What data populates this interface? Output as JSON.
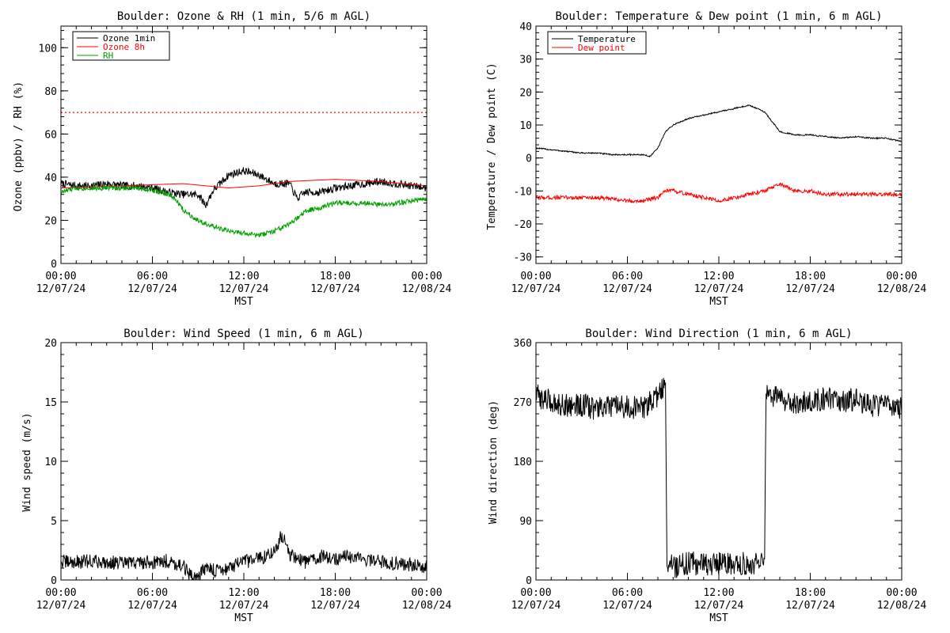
{
  "chart_data": [
    {
      "type": "line",
      "title": "Boulder: Ozone & RH (1 min, 5/6 m AGL)",
      "xlabel": "MST",
      "ylabel": "Ozone (ppbv) / RH (%)",
      "xlim": [
        "12/07/24 00:00",
        "12/08/24 00:00"
      ],
      "ylim": [
        0,
        110
      ],
      "yticks": [
        0,
        20,
        40,
        60,
        80,
        100
      ],
      "xticks": [
        {
          "time": "00:00",
          "date": "12/07/24"
        },
        {
          "time": "06:00",
          "date": "12/07/24"
        },
        {
          "time": "12:00",
          "date": "12/07/24"
        },
        {
          "time": "18:00",
          "date": "12/07/24"
        },
        {
          "time": "00:00",
          "date": "12/08/24"
        }
      ],
      "legend_position": "top-left",
      "reference_lines": [
        {
          "y": 70,
          "color": "#ff0000",
          "style": "dotted"
        }
      ],
      "series": [
        {
          "name": "Ozone 1min",
          "color": "#000000",
          "noise": 1.8,
          "x": [
            0,
            1,
            2,
            3,
            4,
            5,
            6,
            7,
            8,
            9,
            9.5,
            10,
            11,
            12,
            13,
            14,
            15,
            15.5,
            16,
            17,
            18,
            19,
            20,
            21,
            22,
            23,
            24
          ],
          "y": [
            37,
            36,
            36,
            37,
            36,
            36,
            35,
            33,
            32,
            32,
            27,
            34,
            41,
            43,
            41,
            37,
            37,
            30,
            33,
            33,
            35,
            36,
            37,
            38,
            37,
            36,
            35
          ]
        },
        {
          "name": "Ozone 8h",
          "color": "#ff0000",
          "noise": 0,
          "x": [
            0,
            4,
            8,
            11,
            13,
            15,
            18,
            21,
            24
          ],
          "y": [
            35,
            36,
            37,
            35,
            36,
            38,
            39,
            38,
            36
          ]
        },
        {
          "name": "RH",
          "color": "#00a000",
          "noise": 1.2,
          "x": [
            0,
            1,
            2,
            3,
            4,
            5,
            6,
            7,
            7.5,
            8,
            9,
            10,
            11,
            12,
            13,
            14,
            15,
            16,
            17,
            18,
            19,
            20,
            21,
            22,
            23,
            24
          ],
          "y": [
            33,
            35,
            35,
            35,
            35,
            35,
            34,
            32,
            30,
            25,
            20,
            17,
            15,
            14,
            13,
            15,
            18,
            24,
            26,
            28,
            28,
            28,
            27,
            28,
            29,
            30
          ]
        }
      ]
    },
    {
      "type": "line",
      "title": "Boulder: Temperature & Dew point (1 min, 6 m AGL)",
      "xlabel": "MST",
      "ylabel": "Temperature / Dew point (C)",
      "xlim": [
        "12/07/24 00:00",
        "12/08/24 00:00"
      ],
      "ylim": [
        -32,
        40
      ],
      "yticks": [
        -30,
        -20,
        -10,
        0,
        10,
        20,
        30,
        40
      ],
      "xticks": [
        {
          "time": "00:00",
          "date": "12/07/24"
        },
        {
          "time": "06:00",
          "date": "12/07/24"
        },
        {
          "time": "12:00",
          "date": "12/07/24"
        },
        {
          "time": "18:00",
          "date": "12/07/24"
        },
        {
          "time": "00:00",
          "date": "12/08/24"
        }
      ],
      "legend_position": "top-left",
      "series": [
        {
          "name": "Temperature",
          "color": "#000000",
          "noise": 0.2,
          "x": [
            0,
            1,
            2,
            3,
            4,
            5,
            6,
            7,
            7.5,
            8,
            8.5,
            9,
            10,
            11,
            12,
            13,
            14,
            15,
            16,
            17,
            18,
            19,
            20,
            21,
            22,
            23,
            24
          ],
          "y": [
            3,
            2.5,
            2,
            1.5,
            1.5,
            1,
            1,
            1,
            0.5,
            3,
            8,
            10,
            12,
            13,
            14,
            15,
            16,
            14,
            8,
            7,
            7,
            6.5,
            6,
            6.5,
            6,
            6,
            5
          ]
        },
        {
          "name": "Dew point",
          "color": "#ff0000",
          "noise": 0.6,
          "x": [
            0,
            1,
            2,
            3,
            4,
            5,
            6,
            7,
            8,
            8.5,
            9,
            10,
            11,
            12,
            13,
            14,
            15,
            15.5,
            16,
            17,
            18,
            19,
            20,
            21,
            22,
            23,
            24
          ],
          "y": [
            -12,
            -12,
            -12,
            -12,
            -12,
            -12.5,
            -13,
            -13,
            -12,
            -10,
            -10,
            -11,
            -12,
            -13,
            -12,
            -11,
            -10,
            -9,
            -8,
            -10,
            -10,
            -11,
            -11,
            -11,
            -11,
            -11,
            -11
          ]
        }
      ]
    },
    {
      "type": "line",
      "title": "Boulder: Wind Speed (1 min, 6 m AGL)",
      "xlabel": "MST",
      "ylabel": "Wind speed (m/s)",
      "xlim": [
        "12/07/24 00:00",
        "12/08/24 00:00"
      ],
      "ylim": [
        0,
        20
      ],
      "yticks": [
        0,
        5,
        10,
        15,
        20
      ],
      "xticks": [
        {
          "time": "00:00",
          "date": "12/07/24"
        },
        {
          "time": "06:00",
          "date": "12/07/24"
        },
        {
          "time": "12:00",
          "date": "12/07/24"
        },
        {
          "time": "18:00",
          "date": "12/07/24"
        },
        {
          "time": "00:00",
          "date": "12/08/24"
        }
      ],
      "series": [
        {
          "name": "",
          "color": "#000000",
          "noise": 0.6,
          "x": [
            0,
            1,
            2,
            3,
            4,
            5,
            6,
            7,
            8,
            8.5,
            9,
            9.5,
            10,
            11,
            12,
            13,
            14,
            14.5,
            15,
            16,
            17,
            18,
            19,
            20,
            21,
            22,
            23,
            24
          ],
          "y": [
            1.5,
            1.5,
            1.6,
            1.5,
            1.4,
            1.5,
            1.5,
            1.6,
            1.2,
            0.3,
            0.4,
            1,
            0.8,
            1,
            1.5,
            1.8,
            2.4,
            3.8,
            2.2,
            1.5,
            2,
            1.8,
            2,
            1.7,
            1.5,
            1.4,
            1.3,
            1.1
          ]
        }
      ]
    },
    {
      "type": "line",
      "title": "Boulder: Wind Direction (1 min, 6 m AGL)",
      "xlabel": "MST",
      "ylabel": "Wind direction (deg)",
      "xlim": [
        "12/07/24 00:00",
        "12/08/24 00:00"
      ],
      "ylim": [
        0,
        360
      ],
      "yticks": [
        0,
        90,
        180,
        270,
        360
      ],
      "xticks": [
        {
          "time": "00:00",
          "date": "12/07/24"
        },
        {
          "time": "06:00",
          "date": "12/07/24"
        },
        {
          "time": "12:00",
          "date": "12/07/24"
        },
        {
          "time": "18:00",
          "date": "12/07/24"
        },
        {
          "time": "00:00",
          "date": "12/08/24"
        }
      ],
      "series": [
        {
          "name": "",
          "color": "#000000",
          "noise": 18,
          "x": [
            0,
            1,
            2,
            3,
            4,
            5,
            6,
            7,
            8,
            8.5,
            8.6,
            9,
            10,
            11,
            12,
            13,
            14,
            15,
            15.1,
            16,
            17,
            18,
            19,
            20,
            21,
            22,
            23,
            24
          ],
          "y": [
            280,
            270,
            265,
            265,
            260,
            262,
            262,
            260,
            280,
            295,
            30,
            20,
            25,
            25,
            25,
            25,
            25,
            25,
            280,
            275,
            270,
            270,
            275,
            270,
            275,
            265,
            265,
            260
          ]
        }
      ]
    }
  ]
}
